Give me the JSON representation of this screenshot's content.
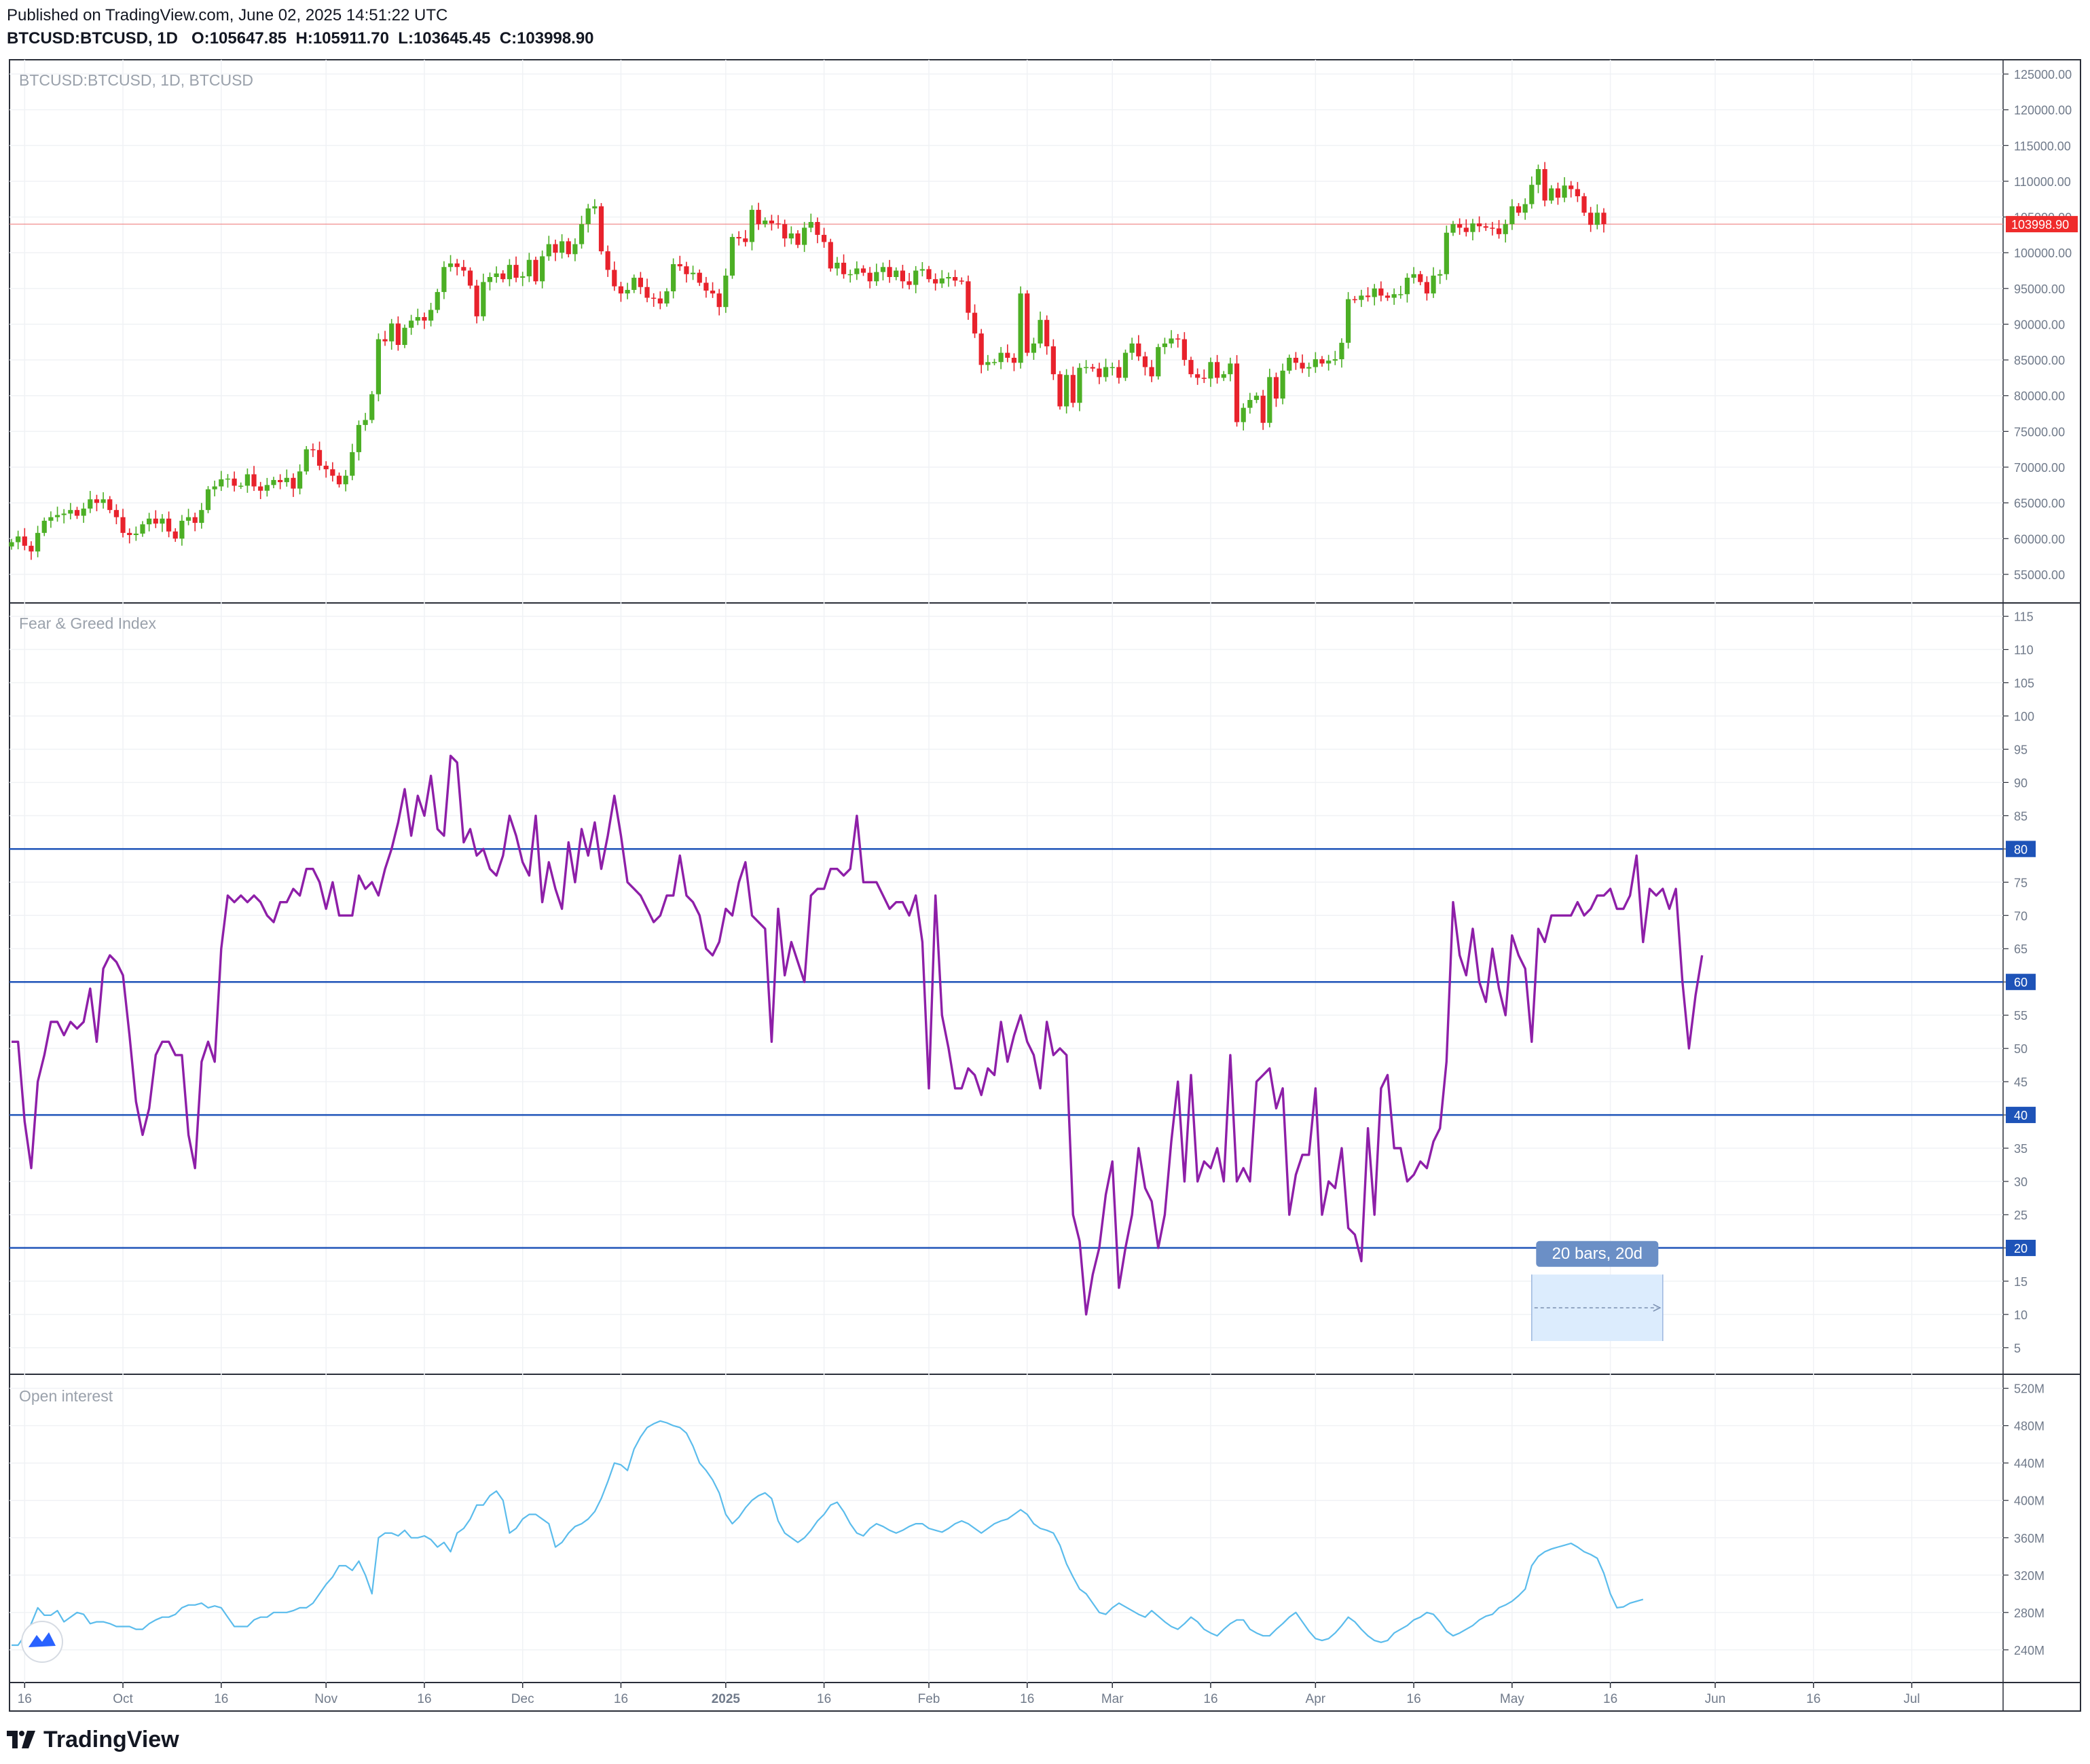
{
  "header": {
    "published": "Published on TradingView.com, June 02, 2025 14:51:22 UTC",
    "symbol": "BTCUSD:BTCUSD, 1D",
    "o_label": "O:",
    "o_value": "105647.85",
    "h_label": "H:",
    "h_value": "105911.70",
    "l_label": "L:",
    "l_value": "103645.45",
    "c_label": "C:",
    "c_value": "103998.90"
  },
  "footer": {
    "brand": "TradingView"
  },
  "colors": {
    "up": "#4caf25",
    "down": "#e8222c",
    "fgi_line": "#8e1fa8",
    "level_line": "#1e53b8",
    "oi_line": "#5bbcec",
    "price_line": "#f08c8c",
    "grid": "#f0f2f5",
    "axis_text": "#707a8a",
    "label_bg_blue": "#1e53b8",
    "label_bg_red": "#ef2b2b",
    "measure_fill": "#dcecfd",
    "measure_tag": "#6b8fc6"
  },
  "chart_data": [
    {
      "type": "candlestick",
      "title": "BTCUSD:BTCUSD, 1D, BTCUSD",
      "ylim": [
        51000,
        127000
      ],
      "y_ticks": [
        "125000.00",
        "120000.00",
        "115000.00",
        "110000.00",
        "105000.00",
        "100000.00",
        "95000.00",
        "90000.00",
        "85000.00",
        "80000.00",
        "75000.00",
        "70000.00",
        "65000.00",
        "60000.00",
        "55000.00"
      ],
      "last_price_label": "103998.90",
      "last_price": 103998.9,
      "x_start": "2024-09-14",
      "closes": [
        59500,
        60300,
        59000,
        58200,
        60800,
        62500,
        63000,
        63300,
        63500,
        64000,
        63200,
        64200,
        65500,
        65000,
        65500,
        64000,
        63000,
        60800,
        60500,
        60700,
        62000,
        62800,
        62100,
        62800,
        61000,
        60000,
        62500,
        63000,
        62200,
        64000,
        66900,
        67300,
        68300,
        68400,
        67400,
        67400,
        69000,
        67300,
        66700,
        67500,
        68200,
        67900,
        68500,
        67000,
        69400,
        72500,
        72400,
        70200,
        69700,
        68800,
        67600,
        68800,
        72100,
        75900,
        76600,
        80200,
        87900,
        87600,
        90100,
        87100,
        89500,
        90500,
        91000,
        90500,
        92000,
        94500,
        98000,
        98500,
        98000,
        97500,
        95400,
        91100,
        95900,
        96600,
        97100,
        96300,
        98300,
        96500,
        96700,
        99000,
        96000,
        99500,
        101200,
        100000,
        101600,
        99800,
        101200,
        104000,
        106200,
        106500,
        100200,
        97600,
        95300,
        94300,
        94800,
        96500,
        95200,
        93700,
        93600,
        92900,
        94600,
        98400,
        98100,
        97000,
        97200,
        95800,
        94700,
        94300,
        92400,
        96800,
        102200,
        102000,
        101500,
        106000,
        104000,
        104500,
        104100,
        104000,
        102000,
        102700,
        101100,
        103500,
        104300,
        102500,
        101500,
        97800,
        98600,
        97000,
        97000,
        97800,
        97200,
        96000,
        97300,
        98000,
        96600,
        97500,
        96000,
        95500,
        97500,
        97700,
        96300,
        95700,
        96400,
        96600,
        96100,
        96000,
        91600,
        88700,
        84300,
        84700,
        84700,
        86000,
        85300,
        84600,
        94300,
        86000,
        87300,
        90600,
        86900,
        83000,
        78500,
        82900,
        79000,
        83900,
        84000,
        83800,
        82600,
        84000,
        84000,
        82500,
        86000,
        87300,
        85500,
        84000,
        82700,
        86800,
        87300,
        88000,
        87900,
        85000,
        83000,
        82500,
        82400,
        84700,
        82500,
        83000,
        84500,
        76300,
        78300,
        79400,
        80000,
        76200,
        82600,
        79600,
        83500,
        85300,
        84600,
        83800,
        84000,
        85100,
        84500,
        84900,
        85100,
        87400,
        93500,
        93400,
        94000,
        93800,
        95000,
        94000,
        93700,
        94200,
        94200,
        96500,
        97000,
        95900,
        94300,
        96800,
        97000,
        102800,
        104000,
        103500,
        102900,
        104100,
        103700,
        103500,
        103400,
        102600,
        104000,
        106500,
        105600,
        106800,
        109500,
        111700,
        107300,
        109000,
        107700,
        109400,
        108900,
        107900,
        105600,
        103900,
        105600,
        104000
      ]
    },
    {
      "type": "line",
      "title": "Fear & Greed Index",
      "ylim": [
        1,
        117
      ],
      "y_ticks": [
        "115",
        "110",
        "105",
        "100",
        "95",
        "90",
        "85",
        "80",
        "75",
        "70",
        "65",
        "60",
        "55",
        "50",
        "45",
        "40",
        "35",
        "30",
        "25",
        "20",
        "15",
        "10",
        "5"
      ],
      "levels": [
        {
          "label": "80",
          "value": 80
        },
        {
          "label": "60",
          "value": 60
        },
        {
          "label": "40",
          "value": 40
        },
        {
          "label": "20",
          "value": 20
        }
      ],
      "x_start": "2024-09-14",
      "values": [
        51,
        51,
        39,
        32,
        45,
        49,
        54,
        54,
        52,
        54,
        53,
        54,
        59,
        51,
        62,
        64,
        63,
        61,
        52,
        42,
        37,
        41,
        49,
        51,
        51,
        49,
        49,
        37,
        32,
        48,
        51,
        48,
        65,
        73,
        72,
        73,
        72,
        73,
        72,
        70,
        69,
        72,
        72,
        74,
        73,
        77,
        77,
        75,
        71,
        75,
        70,
        70,
        70,
        76,
        74,
        75,
        73,
        77,
        80,
        84,
        89,
        82,
        88,
        85,
        91,
        83,
        82,
        94,
        93,
        81,
        83,
        79,
        80,
        77,
        76,
        79,
        85,
        82,
        78,
        76,
        85,
        72,
        78,
        74,
        71,
        81,
        75,
        83,
        79,
        84,
        77,
        82,
        88,
        82,
        75,
        74,
        73,
        71,
        69,
        70,
        73,
        73,
        79,
        73,
        72,
        70,
        65,
        64,
        66,
        71,
        70,
        75,
        78,
        70,
        69,
        68,
        51,
        71,
        61,
        66,
        63,
        60,
        73,
        74,
        74,
        77,
        77,
        76,
        77,
        85,
        75,
        75,
        75,
        73,
        71,
        72,
        72,
        70,
        73,
        66,
        44,
        73,
        55,
        50,
        44,
        44,
        47,
        46,
        43,
        47,
        46,
        54,
        48,
        52,
        55,
        51,
        49,
        44,
        54,
        49,
        50,
        49,
        25,
        21,
        10,
        16,
        20,
        28,
        33,
        14,
        20,
        25,
        35,
        29,
        27,
        20,
        25,
        36,
        45,
        30,
        46,
        30,
        33,
        32,
        35,
        30,
        49,
        30,
        32,
        30,
        45,
        46,
        47,
        41,
        44,
        25,
        31,
        34,
        34,
        44,
        25,
        30,
        29,
        35,
        23,
        22,
        18,
        38,
        25,
        44,
        46,
        35,
        35,
        30,
        31,
        33,
        32,
        36,
        38,
        48,
        72,
        64,
        61,
        68,
        60,
        57,
        65,
        59,
        55,
        67,
        64,
        62,
        51,
        68,
        66,
        70,
        70,
        70,
        70,
        72,
        70,
        71,
        73,
        73,
        74,
        71,
        71,
        73,
        79,
        66,
        74,
        73,
        74,
        71,
        74,
        60,
        50,
        58,
        64
      ]
    },
    {
      "type": "line",
      "title": "Open interest",
      "ylim": [
        205,
        535
      ],
      "y_ticks": [
        "520M",
        "480M",
        "440M",
        "400M",
        "360M",
        "320M",
        "280M",
        "240M"
      ],
      "x_start": "2024-09-14",
      "values": [
        245,
        245,
        255,
        268,
        285,
        277,
        277,
        282,
        270,
        275,
        280,
        278,
        268,
        270,
        270,
        268,
        265,
        265,
        265,
        262,
        262,
        268,
        272,
        275,
        275,
        278,
        285,
        288,
        288,
        290,
        285,
        287,
        285,
        275,
        265,
        265,
        265,
        272,
        275,
        275,
        280,
        280,
        280,
        282,
        285,
        285,
        290,
        300,
        310,
        318,
        330,
        330,
        325,
        335,
        320,
        300,
        360,
        365,
        365,
        362,
        368,
        360,
        360,
        362,
        358,
        350,
        355,
        345,
        365,
        370,
        380,
        395,
        395,
        405,
        410,
        400,
        365,
        370,
        380,
        385,
        385,
        380,
        375,
        350,
        355,
        365,
        372,
        375,
        380,
        388,
        402,
        420,
        440,
        438,
        432,
        455,
        468,
        478,
        482,
        485,
        483,
        480,
        478,
        472,
        458,
        440,
        432,
        422,
        408,
        385,
        375,
        382,
        392,
        400,
        405,
        408,
        402,
        378,
        365,
        360,
        355,
        360,
        368,
        378,
        385,
        395,
        398,
        388,
        375,
        365,
        362,
        370,
        375,
        372,
        368,
        365,
        368,
        372,
        375,
        375,
        370,
        368,
        366,
        370,
        375,
        378,
        375,
        370,
        365,
        370,
        375,
        378,
        380,
        385,
        390,
        385,
        375,
        370,
        368,
        365,
        352,
        332,
        318,
        305,
        300,
        290,
        280,
        278,
        285,
        290,
        286,
        282,
        278,
        275,
        282,
        276,
        270,
        265,
        262,
        268,
        275,
        270,
        262,
        258,
        255,
        262,
        268,
        272,
        272,
        262,
        258,
        255,
        255,
        262,
        268,
        275,
        280,
        270,
        260,
        252,
        250,
        252,
        258,
        266,
        275,
        270,
        262,
        255,
        250,
        248,
        250,
        258,
        262,
        266,
        272,
        275,
        280,
        278,
        270,
        260,
        255,
        258,
        262,
        266,
        272,
        276,
        278,
        285,
        288,
        292,
        298,
        305,
        330,
        340,
        345,
        348,
        350,
        352,
        354,
        350,
        345,
        342,
        338,
        322,
        300,
        285,
        286,
        290,
        292,
        294
      ]
    }
  ],
  "x_axis": {
    "labels": [
      "16",
      "Oct",
      "16",
      "Nov",
      "16",
      "Dec",
      "16",
      "2025",
      "16",
      "Feb",
      "16",
      "Mar",
      "16",
      "Apr",
      "16",
      "May",
      "16",
      "Jun",
      "16",
      "Jul",
      "16"
    ],
    "bold": "2025",
    "tick_dates": [
      "2024-09-16",
      "2024-10-01",
      "2024-10-16",
      "2024-11-01",
      "2024-11-16",
      "2024-12-01",
      "2024-12-16",
      "2025-01-01",
      "2025-01-16",
      "2025-02-01",
      "2025-02-16",
      "2025-03-01",
      "2025-03-16",
      "2025-04-01",
      "2025-04-16",
      "2025-05-01",
      "2025-05-16",
      "2025-06-01",
      "2025-06-16",
      "2025-07-01",
      "2025-07-16"
    ]
  },
  "measure": {
    "label": "20 bars, 20d",
    "from_date": "2025-05-04",
    "to_date": "2025-05-24"
  }
}
